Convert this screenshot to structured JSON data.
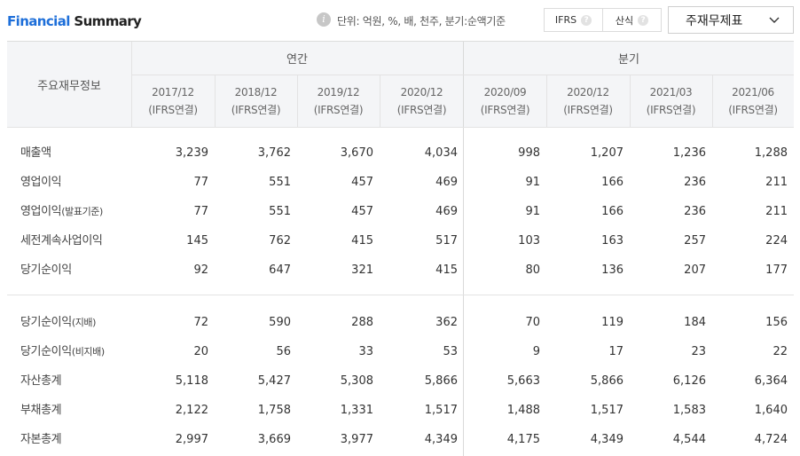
{
  "header": {
    "title_part1": "Financial",
    "title_part2": "Summary",
    "info_icon": "i",
    "unit_text": "단위: 억원, %, 배, 천주, 분기:순액기준",
    "toggle": [
      {
        "label": "IFRS",
        "icon": "?"
      },
      {
        "label": "산식",
        "icon": "?"
      }
    ],
    "dropdown_value": "주재무제표"
  },
  "table": {
    "label_header": "주요재무정보",
    "groups": [
      "연간",
      "분기"
    ],
    "periods": [
      {
        "date": "2017/12",
        "basis": "(IFRS연결)"
      },
      {
        "date": "2018/12",
        "basis": "(IFRS연결)"
      },
      {
        "date": "2019/12",
        "basis": "(IFRS연결)"
      },
      {
        "date": "2020/12",
        "basis": "(IFRS연결)"
      },
      {
        "date": "2020/09",
        "basis": "(IFRS연결)"
      },
      {
        "date": "2020/12",
        "basis": "(IFRS연결)"
      },
      {
        "date": "2021/03",
        "basis": "(IFRS연결)"
      },
      {
        "date": "2021/06",
        "basis": "(IFRS연결)"
      }
    ],
    "rows": [
      {
        "label": "매출액",
        "sub": "",
        "values": [
          "3,239",
          "3,762",
          "3,670",
          "4,034",
          "998",
          "1,207",
          "1,236",
          "1,288"
        ]
      },
      {
        "label": "영업이익",
        "sub": "",
        "values": [
          "77",
          "551",
          "457",
          "469",
          "91",
          "166",
          "236",
          "211"
        ]
      },
      {
        "label": "영업이익",
        "sub": "(발표기준)",
        "values": [
          "77",
          "551",
          "457",
          "469",
          "91",
          "166",
          "236",
          "211"
        ]
      },
      {
        "label": "세전계속사업이익",
        "sub": "",
        "values": [
          "145",
          "762",
          "415",
          "517",
          "103",
          "163",
          "257",
          "224"
        ]
      },
      {
        "label": "당기순이익",
        "sub": "",
        "values": [
          "92",
          "647",
          "321",
          "415",
          "80",
          "136",
          "207",
          "177"
        ]
      },
      {
        "label": "당기순이익",
        "sub": "(지배)",
        "values": [
          "72",
          "590",
          "288",
          "362",
          "70",
          "119",
          "184",
          "156"
        ]
      },
      {
        "label": "당기순이익",
        "sub": "(비지배)",
        "values": [
          "20",
          "56",
          "33",
          "53",
          "9",
          "17",
          "23",
          "22"
        ]
      },
      {
        "label": "자산총계",
        "sub": "",
        "values": [
          "5,118",
          "5,427",
          "5,308",
          "5,866",
          "5,663",
          "5,866",
          "6,126",
          "6,364"
        ]
      },
      {
        "label": "부채총계",
        "sub": "",
        "values": [
          "2,122",
          "1,758",
          "1,331",
          "1,517",
          "1,488",
          "1,517",
          "1,583",
          "1,640"
        ]
      },
      {
        "label": "자본총계",
        "sub": "",
        "values": [
          "2,997",
          "3,669",
          "3,977",
          "4,349",
          "4,175",
          "4,349",
          "4,544",
          "4,724"
        ]
      }
    ]
  }
}
